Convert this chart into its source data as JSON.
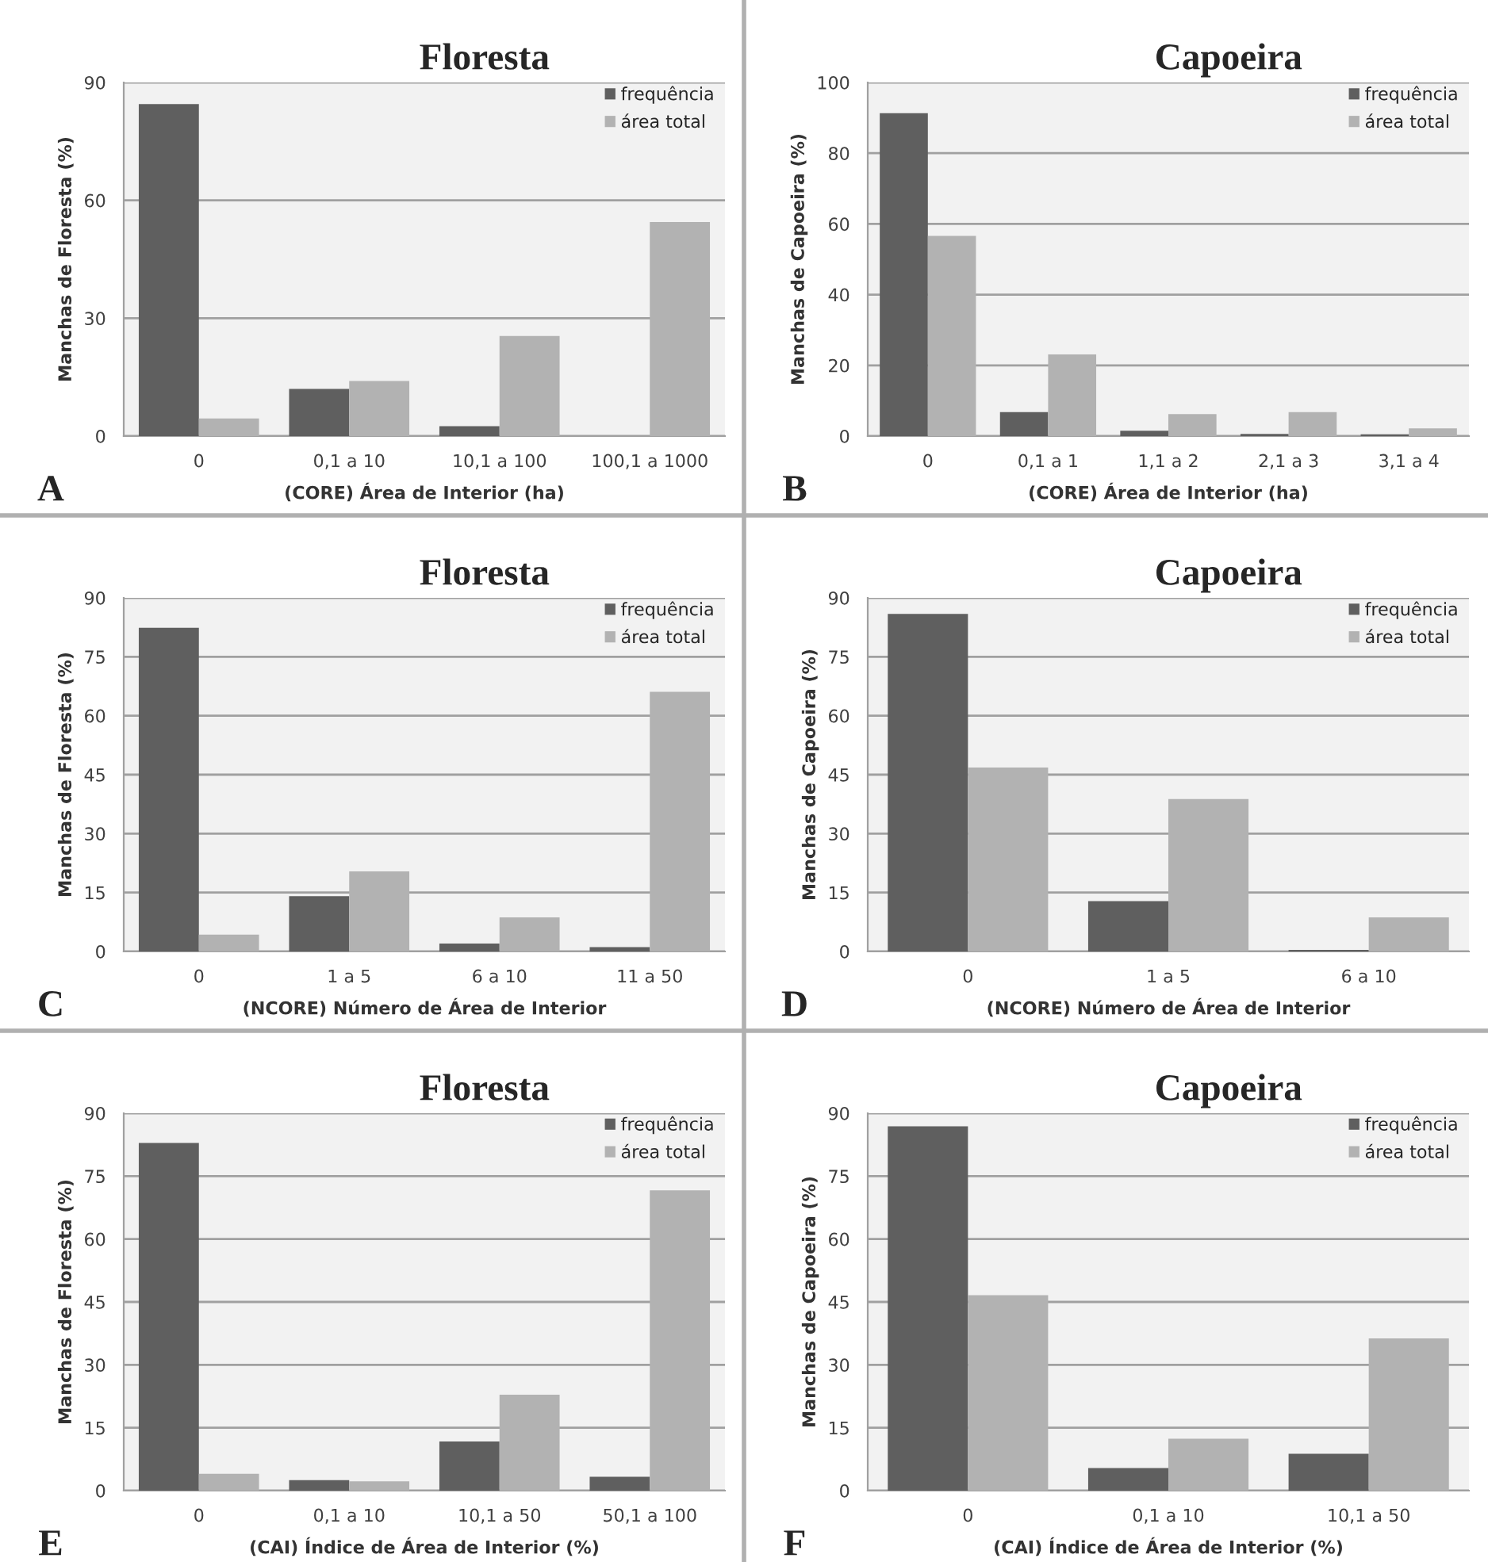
{
  "chart_data": [
    {
      "type": "bar",
      "title": "Floresta",
      "xlabel": "(CORE) Área de Interior (ha)",
      "ylabel": "Manchas de Floresta (%)",
      "categories": [
        "0",
        "0,1 a 10",
        "10,1 a 100",
        "100,1 a 1000"
      ],
      "series": [
        {
          "name": "frequência",
          "color": "#5f5f5f",
          "values": [
            84.5,
            12,
            2.5,
            null
          ]
        },
        {
          "name": "área total",
          "color": "#b2b2b2",
          "values": [
            4.5,
            14,
            25.5,
            54.5
          ]
        }
      ],
      "ylim": [
        0,
        90
      ],
      "yticks": [
        0,
        30,
        60,
        90
      ],
      "grid": "y",
      "legend": "top right",
      "annotations": [
        "A"
      ]
    },
    {
      "type": "bar",
      "title": "Capoeira",
      "xlabel": "(CORE) Área de Interior (ha)",
      "ylabel": "Manchas de Capoeira (%)",
      "categories": [
        "0",
        "0,1 a 1",
        "1,1 a 2",
        "2,1 a 3",
        "3,1 a 4"
      ],
      "series": [
        {
          "name": "frequência",
          "color": "#5f5f5f",
          "values": [
            91.3,
            6.8,
            1.5,
            0.6,
            0.5
          ]
        },
        {
          "name": "área total",
          "color": "#b2b2b2",
          "values": [
            56.6,
            23.1,
            6.2,
            6.8,
            2.2
          ]
        }
      ],
      "ylim": [
        0,
        100
      ],
      "yticks": [
        0,
        20,
        40,
        60,
        80,
        100
      ],
      "grid": "y",
      "legend": "top right",
      "annotations": [
        "B"
      ]
    },
    {
      "type": "bar",
      "title": "Floresta",
      "xlabel": "(NCORE) Número de Área de Interior",
      "ylabel": "Manchas de Floresta (%)",
      "categories": [
        "0",
        "1 a 5",
        "6 a 10",
        "11 a 50"
      ],
      "series": [
        {
          "name": "frequência",
          "color": "#5f5f5f",
          "values": [
            82.4,
            14.1,
            2.0,
            1.1
          ]
        },
        {
          "name": "área total",
          "color": "#b2b2b2",
          "values": [
            4.3,
            20.4,
            8.7,
            66.1
          ]
        }
      ],
      "ylim": [
        0,
        90
      ],
      "yticks": [
        0,
        15,
        30,
        45,
        60,
        75,
        90
      ],
      "grid": "y",
      "legend": "top right",
      "annotations": [
        "C"
      ]
    },
    {
      "type": "bar",
      "title": "Capoeira",
      "xlabel": "(NCORE) Número de Área de Interior",
      "ylabel": "Manchas de Capoeira (%)",
      "categories": [
        "0",
        "1 a 5",
        "6 a 10"
      ],
      "series": [
        {
          "name": "frequência",
          "color": "#5f5f5f",
          "values": [
            85.9,
            12.8,
            0.4
          ]
        },
        {
          "name": "área total",
          "color": "#b2b2b2",
          "values": [
            46.8,
            38.8,
            8.7
          ]
        }
      ],
      "ylim": [
        0,
        90
      ],
      "yticks": [
        0,
        15,
        30,
        45,
        60,
        75,
        90
      ],
      "grid": "y",
      "legend": "top right",
      "annotations": [
        "D"
      ]
    },
    {
      "type": "bar",
      "title": "Floresta",
      "xlabel": "(CAI) Índice de Área de Interior (%)",
      "ylabel": "Manchas de Floresta (%)",
      "categories": [
        "0",
        "0,1 a 10",
        "10,1 a 50",
        "50,1 a 100"
      ],
      "series": [
        {
          "name": "frequência",
          "color": "#5f5f5f",
          "values": [
            82.9,
            2.5,
            11.7,
            3.3
          ]
        },
        {
          "name": "área total",
          "color": "#b2b2b2",
          "values": [
            4.0,
            2.2,
            22.9,
            71.6
          ]
        }
      ],
      "ylim": [
        0,
        90
      ],
      "yticks": [
        0,
        15,
        30,
        45,
        60,
        75,
        90
      ],
      "grid": "y",
      "legend": "top right",
      "annotations": [
        "E"
      ]
    },
    {
      "type": "bar",
      "title": "Capoeira",
      "xlabel": "(CAI) Índice de Área de Interior (%)",
      "ylabel": "Manchas de Capoeira (%)",
      "categories": [
        "0",
        "0,1 a 10",
        "10,1 a 50"
      ],
      "series": [
        {
          "name": "frequência",
          "color": "#5f5f5f",
          "values": [
            86.9,
            5.4,
            8.8
          ]
        },
        {
          "name": "área total",
          "color": "#b2b2b2",
          "values": [
            46.6,
            12.4,
            36.3
          ]
        }
      ],
      "ylim": [
        0,
        90
      ],
      "yticks": [
        0,
        15,
        30,
        45,
        60,
        75,
        90
      ],
      "grid": "y",
      "legend": "top right",
      "annotations": [
        "F"
      ]
    }
  ]
}
